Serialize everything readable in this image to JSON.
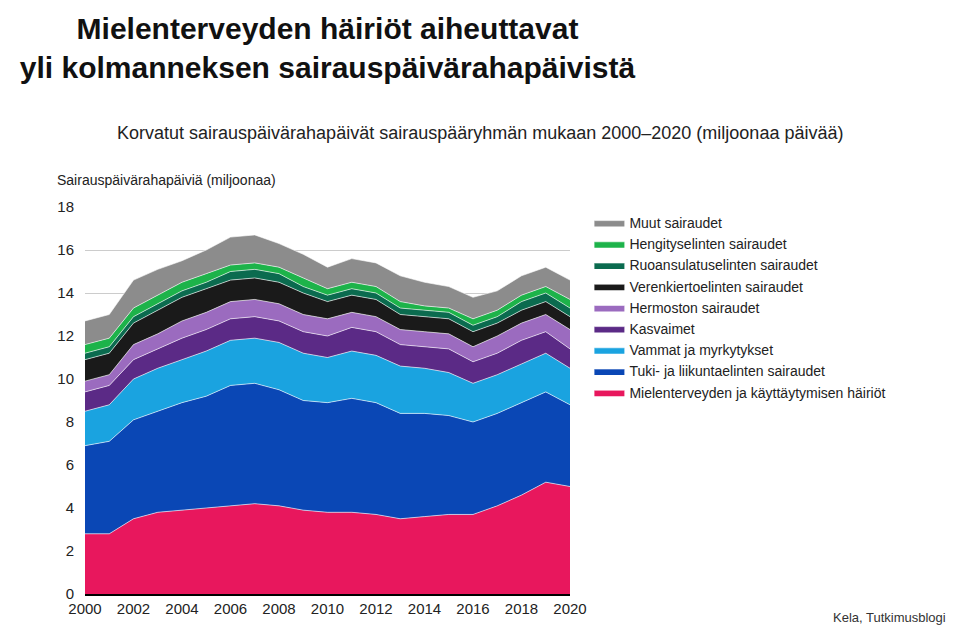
{
  "chart_data": {
    "type": "area",
    "stacked": true,
    "title": [
      "Mielenterveyden häiriöt aiheuttavat",
      "yli kolmanneksen sairauspäivärahapäivistä"
    ],
    "subtitle": "Korvatut sairauspäivärahapäivät sairauspääryhmän mukaan 2000–2020 (miljoonaa päivää)",
    "y_label": "Sairauspäivärahapäiviä (miljoonaa)",
    "source": "Kela, Tutkimusblogi",
    "x": [
      2000,
      2001,
      2002,
      2003,
      2004,
      2005,
      2006,
      2007,
      2008,
      2009,
      2010,
      2011,
      2012,
      2013,
      2014,
      2015,
      2016,
      2017,
      2018,
      2019,
      2020
    ],
    "xlim": [
      2000,
      2020
    ],
    "xticks": [
      2000,
      2002,
      2004,
      2006,
      2008,
      2010,
      2012,
      2014,
      2016,
      2018,
      2020
    ],
    "ylim": [
      0,
      18
    ],
    "yticks": [
      0,
      2,
      4,
      6,
      8,
      10,
      12,
      14,
      16,
      18
    ],
    "grid": true,
    "legend": "right",
    "series": [
      {
        "name": "Mielenterveyden ja käyttäytymisen häiriöt",
        "color": "#e8175d",
        "values": [
          2.8,
          2.8,
          3.5,
          3.8,
          3.9,
          4.0,
          4.1,
          4.2,
          4.1,
          3.9,
          3.8,
          3.8,
          3.7,
          3.5,
          3.6,
          3.7,
          3.7,
          4.1,
          4.6,
          5.2,
          5.0
        ]
      },
      {
        "name": "Tuki- ja liikuntaelinten sairaudet",
        "color": "#0a47b5",
        "values": [
          4.1,
          4.3,
          4.6,
          4.7,
          5.0,
          5.2,
          5.6,
          5.6,
          5.4,
          5.1,
          5.1,
          5.3,
          5.2,
          4.9,
          4.8,
          4.6,
          4.3,
          4.3,
          4.3,
          4.2,
          3.8
        ]
      },
      {
        "name": "Vammat ja myrkytykset",
        "color": "#1aa3e0",
        "values": [
          1.6,
          1.7,
          1.9,
          2.0,
          2.0,
          2.1,
          2.1,
          2.1,
          2.2,
          2.2,
          2.1,
          2.2,
          2.2,
          2.2,
          2.1,
          2.0,
          1.8,
          1.8,
          1.8,
          1.8,
          1.7
        ]
      },
      {
        "name": "Kasvaimet",
        "color": "#5b2a86",
        "values": [
          0.9,
          0.9,
          0.9,
          0.9,
          1.0,
          1.0,
          1.0,
          1.0,
          1.0,
          1.0,
          1.0,
          1.1,
          1.1,
          1.0,
          1.0,
          1.1,
          1.0,
          1.0,
          1.1,
          1.0,
          0.9
        ]
      },
      {
        "name": "Hermoston sairaudet",
        "color": "#9b6bbf",
        "values": [
          0.5,
          0.5,
          0.7,
          0.7,
          0.8,
          0.8,
          0.8,
          0.8,
          0.8,
          0.8,
          0.8,
          0.7,
          0.7,
          0.7,
          0.7,
          0.7,
          0.7,
          0.8,
          0.8,
          0.8,
          0.9
        ]
      },
      {
        "name": "Verenkiertoelinten sairaudet",
        "color": "#1a1a1a",
        "values": [
          1.0,
          1.0,
          1.0,
          1.1,
          1.1,
          1.1,
          1.0,
          1.0,
          1.0,
          1.0,
          0.8,
          0.8,
          0.8,
          0.7,
          0.7,
          0.7,
          0.7,
          0.6,
          0.6,
          0.6,
          0.6
        ]
      },
      {
        "name": "Ruoansulatuselinten sairaudet",
        "color": "#0b6b4f",
        "values": [
          0.3,
          0.3,
          0.3,
          0.3,
          0.3,
          0.3,
          0.4,
          0.4,
          0.4,
          0.3,
          0.3,
          0.3,
          0.3,
          0.3,
          0.3,
          0.3,
          0.3,
          0.3,
          0.4,
          0.4,
          0.4
        ]
      },
      {
        "name": "Hengityselinten sairaudet",
        "color": "#1db34a",
        "values": [
          0.4,
          0.4,
          0.4,
          0.4,
          0.4,
          0.4,
          0.3,
          0.3,
          0.3,
          0.4,
          0.3,
          0.3,
          0.3,
          0.3,
          0.2,
          0.2,
          0.3,
          0.3,
          0.3,
          0.3,
          0.4
        ]
      },
      {
        "name": "Muut sairaudet",
        "color": "#8c8c8c",
        "values": [
          1.1,
          1.1,
          1.3,
          1.2,
          1.0,
          1.1,
          1.3,
          1.3,
          1.1,
          1.1,
          1.0,
          1.1,
          1.1,
          1.2,
          1.1,
          1.0,
          1.0,
          0.9,
          0.9,
          0.9,
          0.9
        ]
      }
    ]
  }
}
